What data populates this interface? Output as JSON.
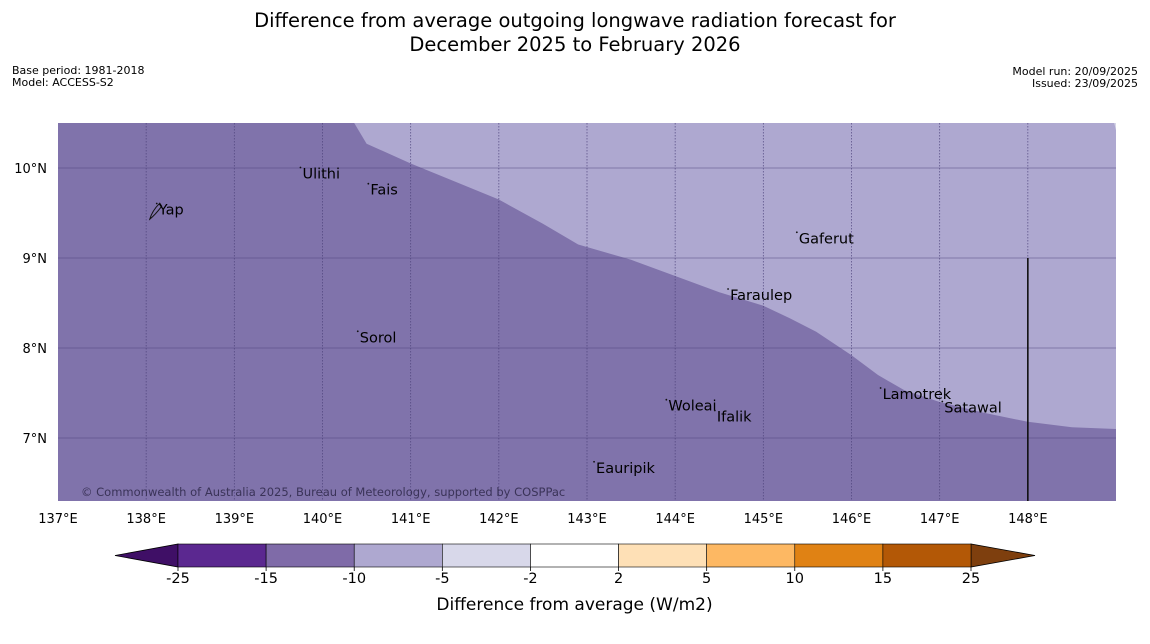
{
  "title": {
    "line1": "Difference from average outgoing longwave radiation forecast for",
    "line2": "December 2025 to February 2026"
  },
  "meta": {
    "base_period": "Base period: 1981-2018",
    "model": "Model: ACCESS-S2",
    "model_run": "Model run: 20/09/2025",
    "issued": "Issued: 23/09/2025"
  },
  "map": {
    "lon_range": [
      137,
      149
    ],
    "lat_range": [
      6.3,
      10.5
    ],
    "lon_ticks": [
      {
        "value": 137,
        "label": "137°E"
      },
      {
        "value": 138,
        "label": "138°E"
      },
      {
        "value": 139,
        "label": "139°E"
      },
      {
        "value": 140,
        "label": "140°E"
      },
      {
        "value": 141,
        "label": "141°E"
      },
      {
        "value": 142,
        "label": "142°E"
      },
      {
        "value": 143,
        "label": "143°E"
      },
      {
        "value": 144,
        "label": "144°E"
      },
      {
        "value": 145,
        "label": "145°E"
      },
      {
        "value": 146,
        "label": "146°E"
      },
      {
        "value": 147,
        "label": "147°E"
      },
      {
        "value": 148,
        "label": "148°E"
      }
    ],
    "lat_ticks": [
      {
        "value": 10,
        "label": "10°N"
      },
      {
        "value": 9,
        "label": "9°N"
      },
      {
        "value": 8,
        "label": "8°N"
      },
      {
        "value": 7,
        "label": "7°N"
      }
    ],
    "colors": {
      "zone_low": "#8073ab",
      "zone_mid": "#aea8d0",
      "zone_high": "#d6d6e8",
      "grid": "#4a3f78"
    },
    "boundary": [
      [
        140.36,
        10.5
      ],
      [
        140.5,
        10.27
      ],
      [
        141.0,
        10.05
      ],
      [
        141.5,
        9.85
      ],
      [
        142.0,
        9.65
      ],
      [
        142.5,
        9.38
      ],
      [
        142.9,
        9.15
      ],
      [
        143.5,
        8.98
      ],
      [
        144.0,
        8.8
      ],
      [
        144.5,
        8.62
      ],
      [
        145.0,
        8.47
      ],
      [
        145.3,
        8.33
      ],
      [
        145.6,
        8.18
      ],
      [
        146.0,
        7.92
      ],
      [
        146.3,
        7.7
      ],
      [
        146.6,
        7.53
      ],
      [
        147.0,
        7.4
      ],
      [
        147.5,
        7.28
      ],
      [
        148.0,
        7.18
      ],
      [
        148.5,
        7.12
      ],
      [
        149,
        7.1
      ]
    ],
    "boundary_high": [
      [
        148.98,
        10.5
      ],
      [
        149,
        10.5
      ],
      [
        149,
        10.42
      ]
    ],
    "places": [
      {
        "name": "Yap",
        "lon": 138.12,
        "lat": 9.55
      },
      {
        "name": "Ulithi",
        "lon": 139.75,
        "lat": 9.95
      },
      {
        "name": "Fais",
        "lon": 140.52,
        "lat": 9.77
      },
      {
        "name": "Gaferut",
        "lon": 145.38,
        "lat": 9.23
      },
      {
        "name": "Faraulep",
        "lon": 144.6,
        "lat": 8.6
      },
      {
        "name": "Sorol",
        "lon": 140.4,
        "lat": 8.13
      },
      {
        "name": "Lamotrek",
        "lon": 146.33,
        "lat": 7.5
      },
      {
        "name": "Woleai",
        "lon": 143.9,
        "lat": 7.37
      },
      {
        "name": "Ifalik",
        "lon": 144.45,
        "lat": 7.25
      },
      {
        "name": "Satawal",
        "lon": 147.03,
        "lat": 7.35
      },
      {
        "name": "Eauripik",
        "lon": 143.08,
        "lat": 6.68
      }
    ],
    "copyright": "© Commonwealth of Australia 2025, Bureau of Meteorology, supported by COSPPac"
  },
  "colorbar": {
    "label": "Difference from average (W/m2)",
    "ticks": [
      "-25",
      "-15",
      "-10",
      "-5",
      "-2",
      "2",
      "5",
      "10",
      "15",
      "25"
    ],
    "low_extend_color": "#3f0f66",
    "high_extend_color": "#7e3f0e",
    "bins": [
      "#5b2890",
      "#7f6ba8",
      "#aea8d0",
      "#d8d8ea",
      "#ffffff",
      "#fee0b6",
      "#fdb863",
      "#e08214",
      "#b35806"
    ]
  }
}
